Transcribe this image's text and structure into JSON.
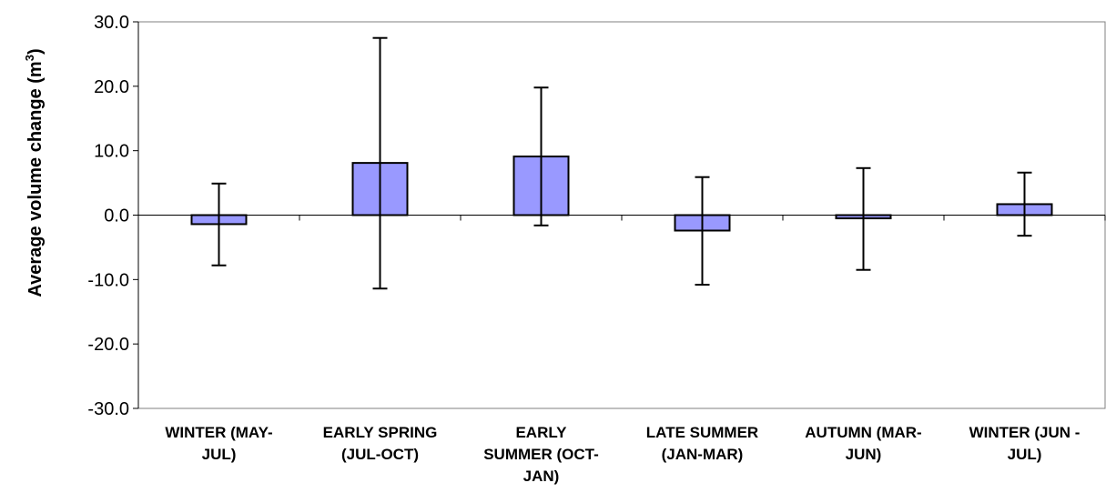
{
  "chart_data": {
    "type": "bar",
    "categories": [
      [
        "WINTER (MAY-",
        "JUL)"
      ],
      [
        "EARLY SPRING",
        "(JUL-OCT)"
      ],
      [
        "EARLY",
        "SUMMER (OCT-",
        "JAN)"
      ],
      [
        "LATE SUMMER",
        "(JAN-MAR)"
      ],
      [
        "AUTUMN (MAR-",
        "JUN)"
      ],
      [
        "WINTER (JUN -",
        "JUL)"
      ]
    ],
    "values": [
      -1.4,
      8.1,
      9.1,
      -2.4,
      -0.5,
      1.7
    ],
    "error_upper": [
      4.9,
      27.5,
      19.8,
      5.9,
      7.3,
      6.6
    ],
    "error_lower": [
      -7.8,
      -11.4,
      -1.6,
      -10.8,
      -8.5,
      -3.2
    ],
    "ylabel": "Average volume change (m",
    "ylabel_sup": "3",
    "ylabel_close": ")",
    "ylim": [
      -30,
      30
    ],
    "yticks": [
      "30.0",
      "20.0",
      "10.0",
      "0.0",
      "-10.0",
      "-20.0",
      "-30.0"
    ],
    "ytick_values": [
      30,
      20,
      10,
      0,
      -10,
      -20,
      -30
    ],
    "bar_color": "#9999ff",
    "grid": false
  }
}
